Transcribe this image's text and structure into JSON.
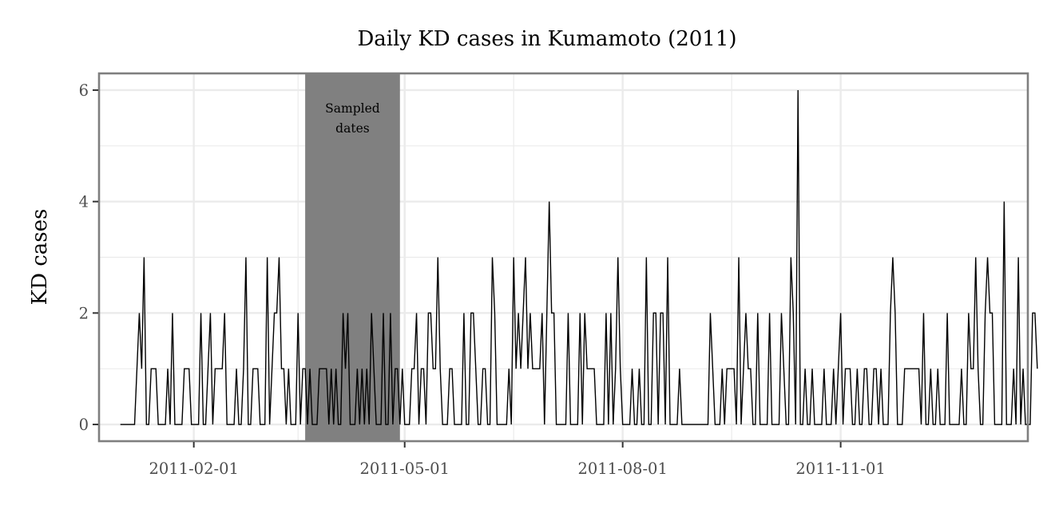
{
  "chart_data": {
    "type": "line",
    "title": "Daily KD cases in Kumamoto (2011)",
    "xlabel": "",
    "ylabel": "KD cases",
    "x_range": [
      "2010-12-23",
      "2012-01-19"
    ],
    "ylim": [
      -0.3,
      6.3
    ],
    "y_ticks": [
      0,
      2,
      4,
      6
    ],
    "x_ticks": [
      "2011-02-01",
      "2011-05-01",
      "2011-08-01",
      "2011-11-01"
    ],
    "x_minor_ticks": [
      "2011-03-17",
      "2011-06-16",
      "2011-09-16"
    ],
    "grid": true,
    "colors": {
      "line": "#000000",
      "band": "#808080",
      "border": "#7f7f7f",
      "grid": "#ebebeb"
    },
    "band": {
      "start": "2011-03-20",
      "end": "2011-04-29",
      "label_lines": [
        "Sampled",
        "dates"
      ]
    },
    "series": [
      {
        "start_date": "2011-01-01",
        "values": [
          0,
          0,
          0,
          0,
          0,
          0,
          0,
          1,
          2,
          1,
          3,
          0,
          0,
          1,
          1,
          1,
          0,
          0,
          0,
          0,
          1,
          0,
          2,
          0,
          0,
          0,
          0,
          1,
          1,
          1,
          0,
          0,
          0,
          0,
          2,
          0,
          0,
          1,
          2,
          0,
          1,
          1,
          1,
          1,
          2,
          0,
          0,
          0,
          0,
          1,
          0,
          0,
          1,
          3,
          0,
          0,
          1,
          1,
          1,
          0,
          0,
          0,
          3,
          0,
          1,
          2,
          2,
          3,
          1,
          1,
          0,
          1,
          0,
          0,
          0,
          2,
          0,
          1,
          1,
          0,
          1,
          0,
          0,
          0,
          1,
          1,
          1,
          1,
          0,
          1,
          0,
          1,
          0,
          0,
          2,
          1,
          2,
          0,
          0,
          0,
          1,
          0,
          1,
          0,
          1,
          0,
          2,
          1,
          0,
          0,
          0,
          2,
          0,
          0,
          2,
          0,
          1,
          1,
          0,
          1,
          0,
          0,
          0,
          1,
          1,
          2,
          0,
          1,
          1,
          0,
          2,
          2,
          1,
          1,
          3,
          1,
          0,
          0,
          0,
          1,
          1,
          0,
          0,
          0,
          0,
          2,
          0,
          0,
          2,
          2,
          1,
          0,
          0,
          1,
          1,
          0,
          0,
          3,
          2,
          0,
          0,
          0,
          0,
          0,
          1,
          0,
          3,
          1,
          2,
          1,
          2,
          3,
          1,
          2,
          1,
          1,
          1,
          1,
          2,
          0,
          2,
          4,
          2,
          2,
          0,
          0,
          0,
          0,
          0,
          2,
          0,
          0,
          0,
          0,
          2,
          0,
          2,
          1,
          1,
          1,
          1,
          0,
          0,
          0,
          0,
          2,
          0,
          2,
          0,
          1,
          3,
          1,
          0,
          0,
          0,
          0,
          1,
          0,
          0,
          1,
          0,
          0,
          3,
          0,
          0,
          2,
          2,
          0,
          2,
          2,
          0,
          3,
          0,
          0,
          0,
          0,
          1,
          0,
          0,
          0,
          0,
          0,
          0,
          0,
          0,
          0,
          0,
          0,
          0,
          2,
          1,
          0,
          0,
          0,
          1,
          0,
          1,
          1,
          1,
          1,
          0,
          3,
          0,
          1,
          2,
          1,
          1,
          0,
          0,
          2,
          0,
          0,
          0,
          0,
          2,
          0,
          0,
          0,
          0,
          2,
          1,
          0,
          0,
          3,
          2,
          0,
          6,
          0,
          0,
          1,
          0,
          0,
          1,
          0,
          0,
          0,
          0,
          1,
          0,
          0,
          0,
          1,
          0,
          1,
          2,
          0,
          1,
          1,
          1,
          0,
          0,
          1,
          0,
          0,
          1,
          1,
          0,
          0,
          1,
          1,
          0,
          1,
          0,
          0,
          0,
          2,
          3,
          2,
          0,
          0,
          0,
          1,
          1,
          1,
          1,
          1,
          1,
          1,
          0,
          2,
          0,
          0,
          1,
          0,
          0,
          1,
          0,
          0,
          0,
          2,
          0,
          0,
          0,
          0,
          0,
          1,
          0,
          0,
          2,
          1,
          1,
          3,
          1,
          0,
          0,
          2,
          3,
          2,
          2,
          0,
          0,
          0,
          0,
          4,
          0,
          0,
          0,
          1,
          0,
          3,
          0,
          1,
          0,
          0,
          0,
          2,
          2,
          1
        ]
      }
    ]
  }
}
